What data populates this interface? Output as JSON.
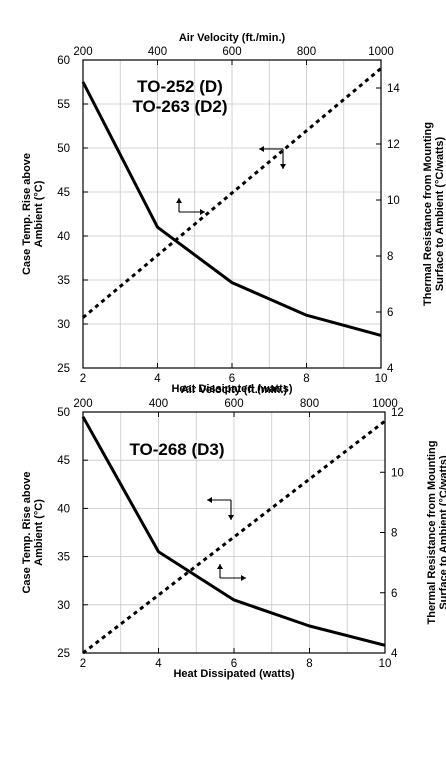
{
  "colors": {
    "lines": "#000000",
    "grid": "#c8c8c8",
    "background": "#ffffff"
  },
  "chart_data": [
    {
      "type": "line",
      "annotation_lines": [
        "TO-252 (D)",
        "TO-263 (D2)"
      ],
      "xlabel": "Heat Dissipated (watts)",
      "x2label": "Air Velocity (ft./min.)",
      "ylabel_lines": [
        "Case Temp. Rise above",
        "Ambient (°C)"
      ],
      "y2label_lines": [
        "Thermal Resistance from Mounting",
        "Surface to Ambient (°C/watts)"
      ],
      "xlim": [
        2,
        10
      ],
      "x2lim": [
        200,
        1000
      ],
      "ylim": [
        25,
        60
      ],
      "y2lim": [
        4,
        15
      ],
      "x_ticks": [
        2,
        4,
        6,
        8,
        10
      ],
      "x2_ticks": [
        200,
        400,
        600,
        800,
        1000
      ],
      "y_ticks": [
        25,
        30,
        35,
        40,
        45,
        50,
        55,
        60
      ],
      "y2_ticks": [
        4,
        6,
        8,
        10,
        12,
        14
      ],
      "grid": true,
      "series": [
        {
          "style": "solid",
          "axes": "bottom-left",
          "x": [
            2,
            4,
            6,
            8,
            10
          ],
          "y": [
            57.5,
            41,
            34.7,
            31,
            28.7
          ]
        },
        {
          "style": "dotted",
          "axes": "top-right",
          "x": [
            200,
            1000
          ],
          "y": [
            5.8,
            14.7
          ]
        }
      ]
    },
    {
      "type": "line",
      "annotation_lines": [
        "TO-268 (D3)"
      ],
      "xlabel": "Heat Dissipated (watts)",
      "x2label": "Air Velocity (ft./min.)",
      "ylabel_lines": [
        "Case Temp. Rise above",
        "Ambient (°C)"
      ],
      "y2label_lines": [
        "Thermal Resistance from Mounting",
        "Surface to Ambient (°C/watts)"
      ],
      "xlim": [
        2,
        10
      ],
      "x2lim": [
        200,
        1000
      ],
      "ylim": [
        25,
        50
      ],
      "y2lim": [
        4,
        12
      ],
      "x_ticks": [
        2,
        4,
        6,
        8,
        10
      ],
      "x2_ticks": [
        200,
        400,
        600,
        800,
        1000
      ],
      "y_ticks": [
        25,
        30,
        35,
        40,
        45,
        50
      ],
      "y2_ticks": [
        4,
        6,
        8,
        10,
        12
      ],
      "grid": true,
      "series": [
        {
          "style": "solid",
          "axes": "bottom-left",
          "x": [
            2,
            4,
            6,
            8,
            10
          ],
          "y": [
            49.5,
            35.5,
            30.5,
            27.8,
            25.8
          ]
        },
        {
          "style": "dotted",
          "axes": "top-right",
          "x": [
            200,
            1000
          ],
          "y": [
            4.0,
            11.7
          ]
        }
      ]
    }
  ]
}
